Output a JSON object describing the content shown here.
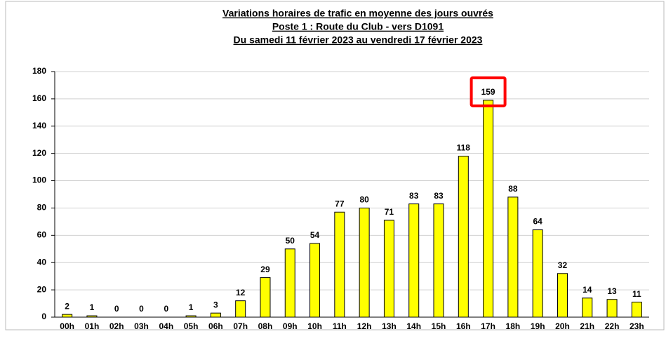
{
  "chart_data": {
    "type": "bar",
    "title": [
      "Variations horaires de trafic en moyenne des jours ouvrés",
      "Poste 1 : Route du Club - vers D1091",
      "Du samedi 11 février 2023 au vendredi 17 février 2023"
    ],
    "categories": [
      "00h",
      "01h",
      "02h",
      "03h",
      "04h",
      "05h",
      "06h",
      "07h",
      "08h",
      "09h",
      "10h",
      "11h",
      "12h",
      "13h",
      "14h",
      "15h",
      "16h",
      "17h",
      "18h",
      "19h",
      "20h",
      "21h",
      "22h",
      "23h"
    ],
    "values": [
      2,
      1,
      0,
      0,
      0,
      1,
      3,
      12,
      29,
      50,
      54,
      77,
      80,
      71,
      83,
      83,
      118,
      159,
      88,
      64,
      32,
      14,
      13,
      11
    ],
    "color": "#ffff00",
    "ylim": [
      0,
      180
    ],
    "yticks": [
      0,
      20,
      40,
      60,
      80,
      100,
      120,
      140,
      160,
      180
    ],
    "grid": true
  }
}
